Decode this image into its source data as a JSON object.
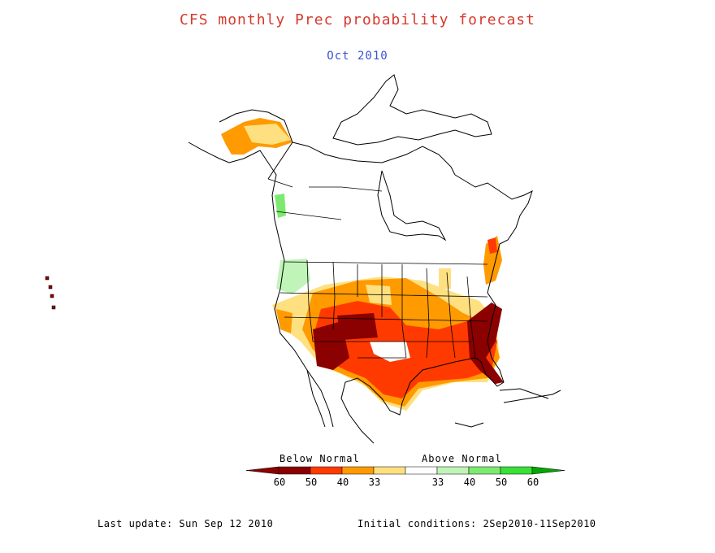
{
  "header": {
    "title": "CFS monthly Prec probability forecast",
    "subtitle": "Oct 2010",
    "title_color": "#d63a2e",
    "subtitle_color": "#3a52d6"
  },
  "legend": {
    "below_label": "Below Normal",
    "above_label": "Above Normal",
    "categories": [
      {
        "label": "60",
        "color": "#8b0000"
      },
      {
        "label": "50",
        "color": "#ff3a00"
      },
      {
        "label": "40",
        "color": "#ff9a00"
      },
      {
        "label": "33",
        "color": "#ffe080"
      },
      {
        "label": "33",
        "color": "#ffffff"
      },
      {
        "label": "40",
        "color": "#c0f4b8"
      },
      {
        "label": "50",
        "color": "#7cea70"
      },
      {
        "label": "60",
        "color": "#38e038"
      }
    ],
    "end_left_color": "#8b0000",
    "end_right_color": "#00a800"
  },
  "footer": {
    "last_update": "Last update: Sun Sep 12 2010",
    "initial_conditions": "Initial conditions: 2Sep2010-11Sep2010"
  }
}
